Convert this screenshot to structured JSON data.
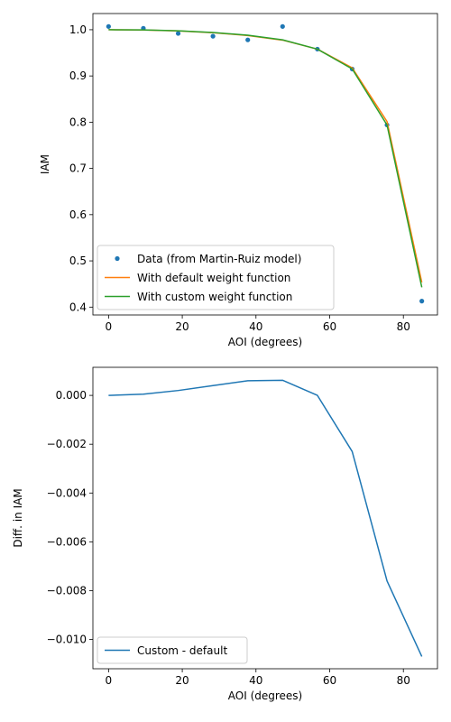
{
  "chart_data": [
    {
      "type": "line",
      "title": "",
      "xlabel": "AOI (degrees)",
      "ylabel": "IAM",
      "xlim": [
        -4.25,
        89.25
      ],
      "ylim": [
        0.383,
        1.035
      ],
      "xticks": [
        0,
        20,
        40,
        60,
        80
      ],
      "yticks": [
        0.4,
        0.5,
        0.6,
        0.7,
        0.8,
        0.9,
        1.0
      ],
      "ytick_labels": [
        "0.4",
        "0.5",
        "0.6",
        "0.7",
        "0.8",
        "0.9",
        "1.0"
      ],
      "legend_position": "lower-left",
      "grid": false,
      "x": [
        0,
        9.44,
        18.89,
        28.33,
        37.78,
        47.22,
        56.67,
        66.11,
        75.56,
        85
      ],
      "series": [
        {
          "name": "Data (from Martin-Ruiz model)",
          "style": "markers",
          "color": "#1f77b4",
          "values": [
            1.007,
            1.003,
            0.992,
            0.986,
            0.978,
            1.007,
            0.958,
            0.915,
            0.794,
            0.413
          ]
        },
        {
          "name": "With default weight function",
          "style": "line",
          "color": "#ff7f0e",
          "values": [
            1.0,
            0.9995,
            0.9975,
            0.9935,
            0.9875,
            0.9775,
            0.958,
            0.9175,
            0.8015,
            0.4535
          ]
        },
        {
          "name": "With custom weight function",
          "style": "line",
          "color": "#2ca02c",
          "values": [
            1.0,
            0.9996,
            0.9977,
            0.9939,
            0.9881,
            0.9781,
            0.958,
            0.9152,
            0.7939,
            0.4428
          ]
        }
      ]
    },
    {
      "type": "line",
      "title": "",
      "xlabel": "AOI (degrees)",
      "ylabel": "Diff. in IAM",
      "xlim": [
        -4.25,
        89.25
      ],
      "ylim": [
        -0.0112,
        0.00115
      ],
      "xticks": [
        0,
        20,
        40,
        60,
        80
      ],
      "yticks": [
        0.0,
        -0.002,
        -0.004,
        -0.006,
        -0.008,
        -0.01
      ],
      "ytick_labels": [
        "0.000",
        "−0.002",
        "−0.004",
        "−0.006",
        "−0.008",
        "−0.010"
      ],
      "legend_position": "lower-left",
      "grid": false,
      "x": [
        0,
        9.44,
        18.89,
        28.33,
        37.78,
        47.22,
        56.67,
        66.11,
        75.56,
        85
      ],
      "series": [
        {
          "name": "Custom - default",
          "style": "line",
          "color": "#1f77b4",
          "values": [
            0.0,
            5e-05,
            0.0002,
            0.0004,
            0.0006,
            0.00062,
            0.0,
            -0.0023,
            -0.0076,
            -0.0107
          ]
        }
      ]
    }
  ]
}
